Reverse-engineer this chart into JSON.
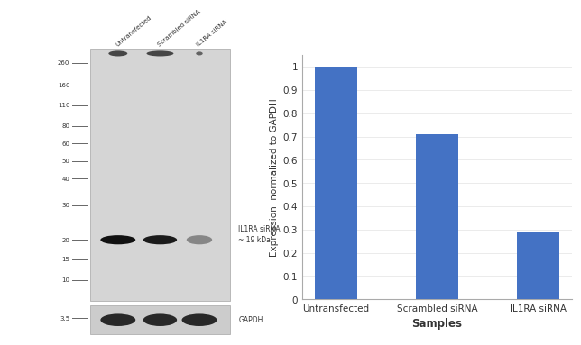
{
  "categories": [
    "Untransfected",
    "Scrambled siRNA",
    "IL1RA siRNA"
  ],
  "values": [
    1.0,
    0.71,
    0.29
  ],
  "bar_color": "#4472C4",
  "ylabel": "Expression  normalized to GAPDH",
  "xlabel": "Samples",
  "ylim": [
    0,
    1.05
  ],
  "yticks": [
    0,
    0.1,
    0.2,
    0.3,
    0.4,
    0.5,
    0.6,
    0.7,
    0.8,
    0.9,
    1.0
  ],
  "wb_ladder_labels": [
    "260",
    "160",
    "110",
    "80",
    "60",
    "50",
    "40",
    "30",
    "20",
    "15",
    "10",
    "3.5"
  ],
  "wb_ladder_y": [
    0.895,
    0.82,
    0.755,
    0.688,
    0.63,
    0.573,
    0.515,
    0.428,
    0.315,
    0.252,
    0.183,
    0.058
  ],
  "wb_band_label": "IL1RA siRNA\n~ 19 kDa",
  "wb_gapdh_label": "GAPDH",
  "wb_sample_labels": [
    "Untransfected",
    "Scrambled siRNA",
    "IL1RA siRNA"
  ],
  "background_color": "#ffffff"
}
